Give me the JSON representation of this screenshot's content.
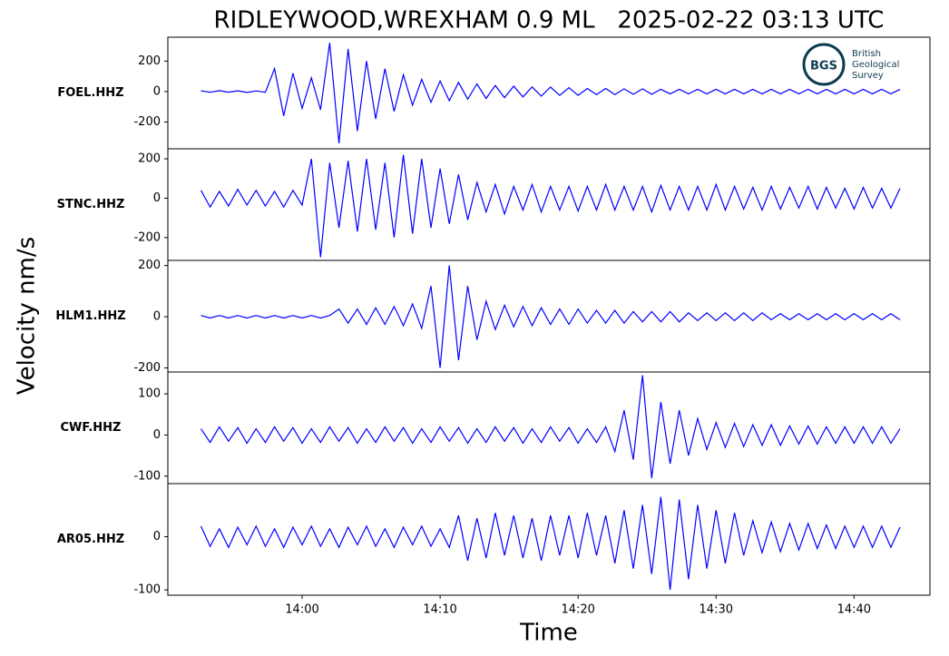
{
  "chart_data": {
    "type": "line",
    "title": "RIDLEYWOOD,WREXHAM 0.9 ML   2025-02-22 03:13 UTC",
    "y_label": "Velocity nm/s",
    "x_label": "Time",
    "color": "#0000ff",
    "xlim": [
      "13:50:16",
      "14:45:30"
    ],
    "xticks": [
      {
        "value": "14:00:00",
        "label": "14:00"
      },
      {
        "value": "14:10:00",
        "label": "14:10"
      },
      {
        "value": "14:20:00",
        "label": "14:20"
      },
      {
        "value": "14:30:00",
        "label": "14:30"
      },
      {
        "value": "14:40:00",
        "label": "14:40"
      }
    ],
    "x": [
      "13:52:40",
      "13:53:20",
      "13:54:00",
      "13:54:40",
      "13:55:20",
      "13:56:00",
      "13:56:40",
      "13:57:20",
      "13:58:00",
      "13:58:40",
      "13:59:20",
      "14:00:00",
      "14:00:40",
      "14:01:20",
      "14:02:00",
      "14:02:40",
      "14:03:20",
      "14:04:00",
      "14:04:40",
      "14:05:20",
      "14:06:00",
      "14:06:40",
      "14:07:20",
      "14:08:00",
      "14:08:40",
      "14:09:20",
      "14:10:00",
      "14:10:40",
      "14:11:20",
      "14:12:00",
      "14:12:40",
      "14:13:20",
      "14:14:00",
      "14:14:40",
      "14:15:20",
      "14:16:00",
      "14:16:40",
      "14:17:20",
      "14:18:00",
      "14:18:40",
      "14:19:20",
      "14:20:00",
      "14:20:40",
      "14:21:20",
      "14:22:00",
      "14:22:40",
      "14:23:20",
      "14:24:00",
      "14:24:40",
      "14:25:20",
      "14:26:00",
      "14:26:40",
      "14:27:20",
      "14:28:00",
      "14:28:40",
      "14:29:20",
      "14:30:00",
      "14:30:40",
      "14:31:20",
      "14:32:00",
      "14:32:40",
      "14:33:20",
      "14:34:00",
      "14:34:40",
      "14:35:20",
      "14:36:00",
      "14:36:40",
      "14:37:20",
      "14:38:00",
      "14:38:40",
      "14:39:20",
      "14:40:00",
      "14:40:40",
      "14:41:20",
      "14:42:00",
      "14:42:40",
      "14:43:20"
    ],
    "series": [
      {
        "name": "FOEL.HHZ",
        "ylim": [
          -376,
          357
        ],
        "yticks": [
          200,
          0,
          -200
        ],
        "values": [
          5,
          -5,
          6,
          -4,
          5,
          -6,
          4,
          -5,
          150,
          -160,
          120,
          -110,
          90,
          -120,
          320,
          -340,
          280,
          -260,
          200,
          -180,
          150,
          -130,
          110,
          -90,
          80,
          -70,
          70,
          -60,
          60,
          -50,
          50,
          -45,
          40,
          -40,
          35,
          -35,
          30,
          -30,
          30,
          -25,
          25,
          -25,
          20,
          -20,
          20,
          -20,
          18,
          -18,
          18,
          -18,
          15,
          -15,
          15,
          -15,
          15,
          -15,
          15,
          -15,
          15,
          -15,
          15,
          -15,
          15,
          -15,
          15,
          -15,
          15,
          -15,
          15,
          -15,
          15,
          -15,
          15,
          -15,
          15,
          -15,
          15
        ]
      },
      {
        "name": "STNC.HHZ",
        "ylim": [
          -316,
          251
        ],
        "yticks": [
          200,
          0,
          -200
        ],
        "values": [
          40,
          -45,
          35,
          -40,
          45,
          -35,
          40,
          -40,
          35,
          -45,
          40,
          -35,
          200,
          -300,
          180,
          -150,
          190,
          -170,
          200,
          -160,
          180,
          -200,
          220,
          -180,
          200,
          -150,
          150,
          -130,
          120,
          -110,
          80,
          -70,
          70,
          -80,
          60,
          -60,
          70,
          -70,
          60,
          -60,
          60,
          -65,
          60,
          -60,
          70,
          -60,
          60,
          -60,
          60,
          -70,
          65,
          -60,
          60,
          -60,
          60,
          -60,
          70,
          -60,
          60,
          -55,
          55,
          -60,
          60,
          -55,
          55,
          -50,
          60,
          -55,
          55,
          -50,
          50,
          -55,
          55,
          -50,
          50,
          -50,
          50
        ]
      },
      {
        "name": "HLM1.HHZ",
        "ylim": [
          -216,
          220
        ],
        "yticks": [
          200,
          0,
          -200
        ],
        "values": [
          5,
          -5,
          5,
          -5,
          5,
          -5,
          5,
          -5,
          5,
          -5,
          5,
          -5,
          5,
          -5,
          5,
          30,
          -25,
          30,
          -30,
          35,
          -30,
          40,
          -35,
          50,
          -45,
          120,
          -200,
          200,
          -170,
          120,
          -90,
          60,
          -50,
          45,
          -40,
          40,
          -35,
          35,
          -30,
          30,
          -30,
          30,
          -25,
          25,
          -25,
          25,
          -25,
          20,
          -20,
          20,
          -20,
          20,
          -20,
          15,
          -15,
          15,
          -15,
          15,
          -15,
          15,
          -15,
          15,
          -12,
          12,
          -12,
          12,
          -12,
          12,
          -12,
          12,
          -12,
          12,
          -12,
          12,
          -12,
          12,
          -12
        ]
      },
      {
        "name": "CWF.HHZ",
        "ylim": [
          -118,
          153
        ],
        "yticks": [
          100,
          0,
          -100
        ],
        "values": [
          15,
          -18,
          20,
          -15,
          18,
          -20,
          15,
          -18,
          20,
          -15,
          18,
          -20,
          15,
          -18,
          20,
          -15,
          18,
          -20,
          15,
          -18,
          20,
          -15,
          18,
          -20,
          15,
          -18,
          20,
          -15,
          18,
          -20,
          15,
          -18,
          20,
          -15,
          18,
          -20,
          15,
          -18,
          20,
          -15,
          18,
          -20,
          15,
          -18,
          20,
          -40,
          60,
          -60,
          145,
          -105,
          80,
          -70,
          60,
          -50,
          40,
          -35,
          30,
          -30,
          28,
          -28,
          25,
          -25,
          25,
          -25,
          22,
          -22,
          22,
          -22,
          20,
          -20,
          20,
          -20,
          20,
          -20,
          20,
          -20,
          15
        ]
      },
      {
        "name": "AR05.HHZ",
        "ylim": [
          -110,
          100
        ],
        "yticks": [
          0,
          -100
        ],
        "values": [
          20,
          -18,
          15,
          -20,
          18,
          -15,
          20,
          -18,
          15,
          -20,
          18,
          -15,
          20,
          -18,
          15,
          -20,
          18,
          -15,
          20,
          -18,
          15,
          -20,
          18,
          -15,
          20,
          -18,
          15,
          -20,
          40,
          -45,
          35,
          -40,
          45,
          -35,
          40,
          -40,
          35,
          -45,
          40,
          -35,
          40,
          -40,
          45,
          -35,
          40,
          -50,
          50,
          -60,
          60,
          -70,
          75,
          -100,
          70,
          -80,
          60,
          -60,
          50,
          -50,
          45,
          -35,
          30,
          -30,
          28,
          -28,
          25,
          -25,
          25,
          -22,
          22,
          -22,
          20,
          -20,
          20,
          -20,
          20,
          -20,
          18
        ]
      }
    ]
  },
  "logo": {
    "initials": "BGS",
    "lines": [
      "British",
      "Geological",
      "Survey"
    ]
  }
}
